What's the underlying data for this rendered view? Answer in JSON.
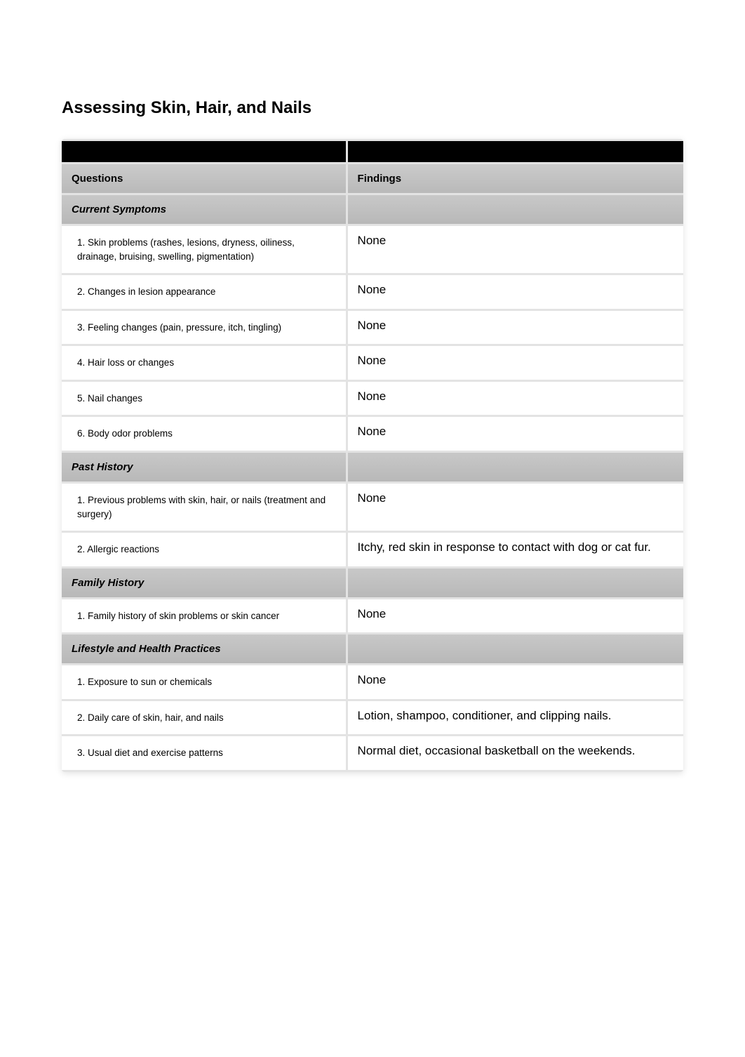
{
  "title": "Assessing Skin, Hair, and Nails",
  "columns": {
    "questions": "Questions",
    "findings": "Findings"
  },
  "sections": [
    {
      "heading": "Current Symptoms",
      "rows": [
        {
          "q": "1. Skin problems (rashes, lesions, dryness, oiliness, drainage, bruising, swelling, pigmentation)",
          "a": "None"
        },
        {
          "q": "2. Changes in lesion appearance",
          "a": "None"
        },
        {
          "q": "3. Feeling changes (pain, pressure, itch, tingling)",
          "a": "None"
        },
        {
          "q": "4. Hair loss or changes",
          "a": "None"
        },
        {
          "q": "5. Nail changes",
          "a": "None"
        },
        {
          "q": "6. Body odor problems",
          "a": "None"
        }
      ]
    },
    {
      "heading": "Past History",
      "rows": [
        {
          "q": "1. Previous problems with skin, hair, or nails (treatment and surgery)",
          "a": "None"
        },
        {
          "q": "2. Allergic reactions",
          "a": "Itchy, red skin in response to contact with dog or cat fur."
        }
      ]
    },
    {
      "heading": "Family History",
      "rows": [
        {
          "q": "1. Family history of skin problems or skin cancer",
          "a": "None"
        }
      ]
    },
    {
      "heading": "Lifestyle and Health Practices",
      "rows": [
        {
          "q": "1. Exposure to sun or chemicals",
          "a": "None"
        },
        {
          "q": "2. Daily care of skin, hair, and nails",
          "a": "Lotion, shampoo, conditioner, and clipping nails."
        },
        {
          "q": "3. Usual diet and exercise patterns",
          "a": "Normal diet, occasional basketball on the weekends."
        }
      ]
    }
  ],
  "colors": {
    "page_bg": "#ffffff",
    "black_bar": "#000000",
    "header_bg": "#c1c1c1",
    "section_bg": "#c1c1c1",
    "row_bg": "#ffffff",
    "gap": "#e3e3e3",
    "text": "#000000"
  }
}
